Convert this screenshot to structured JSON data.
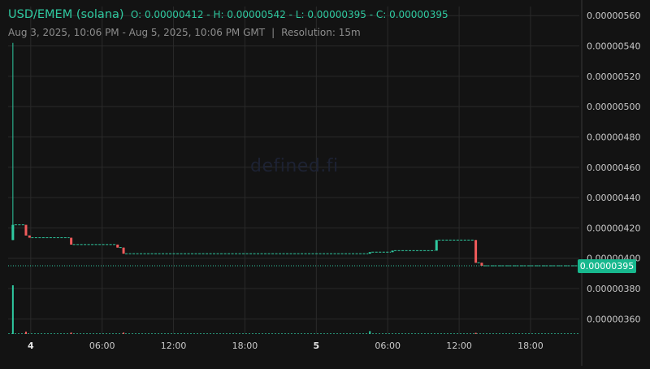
{
  "header": {
    "title": "USD/EMEM (solana)",
    "ohlc": "O: 0.00000412 - H: 0.00000542 - L: 0.00000395 - C: 0.00000395",
    "range": "Aug 3, 2025, 10:06 PM - Aug 5, 2025, 10:06 PM GMT",
    "separator": "|",
    "resolution": "Resolution: 15m"
  },
  "watermark": "defined.fi",
  "last_price_label": "0.00000395",
  "colors": {
    "background": "#131313",
    "grid": "#2a2a2a",
    "up": "#2fc9a0",
    "down": "#ef5b5b",
    "axis_text": "#c9c9c9",
    "last_price_bg": "#18b88e"
  },
  "chart_data": {
    "type": "candlestick",
    "y_ticks": [
      "0.00000560",
      "0.00000540",
      "0.00000520",
      "0.00000500",
      "0.00000480",
      "0.00000460",
      "0.00000440",
      "0.00000420",
      "0.00000400",
      "0.00000380",
      "0.00000360"
    ],
    "ylim": [
      3.5e-06,
      5.66e-06
    ],
    "x_ticks": [
      {
        "t": 1.9,
        "label": "4",
        "day": true
      },
      {
        "t": 7.9,
        "label": "06:00",
        "day": false
      },
      {
        "t": 13.9,
        "label": "12:00",
        "day": false
      },
      {
        "t": 19.9,
        "label": "18:00",
        "day": false
      },
      {
        "t": 25.9,
        "label": "5",
        "day": true
      },
      {
        "t": 31.9,
        "label": "06:00",
        "day": false
      },
      {
        "t": 37.9,
        "label": "12:00",
        "day": false
      },
      {
        "t": 43.9,
        "label": "18:00",
        "day": false
      }
    ],
    "xlim": [
      0,
      48
    ],
    "candles": [
      {
        "t": 0.4,
        "o": 4.12e-06,
        "h": 5.42e-06,
        "l": 4.12e-06,
        "c": 4.22e-06
      },
      {
        "t": 1.5,
        "o": 4.22e-06,
        "h": 4.22e-06,
        "l": 4.15e-06,
        "c": 4.15e-06
      },
      {
        "t": 1.8,
        "o": 4.15e-06,
        "h": 4.15e-06,
        "l": 4.135e-06,
        "c": 4.135e-06
      },
      {
        "t": 5.3,
        "o": 4.135e-06,
        "h": 4.135e-06,
        "l": 4.09e-06,
        "c": 4.09e-06
      },
      {
        "t": 9.2,
        "o": 4.09e-06,
        "h": 4.09e-06,
        "l": 4.07e-06,
        "c": 4.07e-06
      },
      {
        "t": 9.7,
        "o": 4.07e-06,
        "h": 4.07e-06,
        "l": 4.03e-06,
        "c": 4.03e-06
      },
      {
        "t": 30.4,
        "o": 4.03e-06,
        "h": 4.04e-06,
        "l": 4.03e-06,
        "c": 4.04e-06
      },
      {
        "t": 32.3,
        "o": 4.04e-06,
        "h": 4.05e-06,
        "l": 4.04e-06,
        "c": 4.05e-06
      },
      {
        "t": 36.0,
        "o": 4.05e-06,
        "h": 4.12e-06,
        "l": 4.05e-06,
        "c": 4.12e-06
      },
      {
        "t": 39.3,
        "o": 4.12e-06,
        "h": 4.12e-06,
        "l": 3.97e-06,
        "c": 3.97e-06
      },
      {
        "t": 39.8,
        "o": 3.97e-06,
        "h": 3.97e-06,
        "l": 3.95e-06,
        "c": 3.95e-06
      }
    ],
    "volume_spikes": [
      {
        "t": 0.4,
        "v": 1.0,
        "up": true
      },
      {
        "t": 1.5,
        "v": 0.05,
        "up": false
      },
      {
        "t": 5.3,
        "v": 0.03,
        "up": false
      },
      {
        "t": 9.7,
        "v": 0.03,
        "up": false
      },
      {
        "t": 30.4,
        "v": 0.06,
        "up": true
      },
      {
        "t": 39.3,
        "v": 0.02,
        "up": false
      }
    ],
    "last_price": 3.95e-06
  }
}
